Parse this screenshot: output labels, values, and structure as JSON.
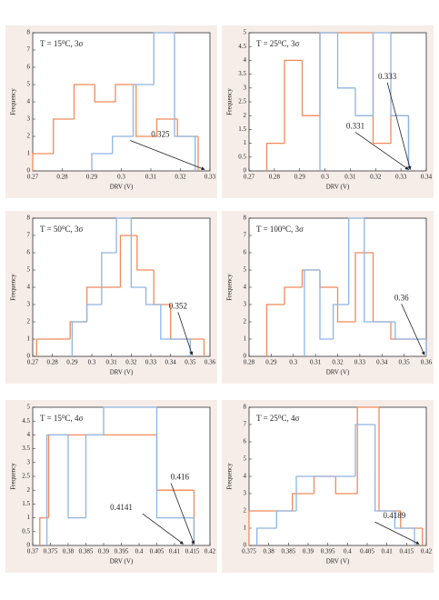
{
  "chart_data": [
    {
      "type": "histogram",
      "title": "T = 15⁰C, 3σ",
      "xlabel": "DRV (V)",
      "ylabel": "Frequency",
      "xlim": [
        0.27,
        0.33
      ],
      "xticks": [
        0.27,
        0.28,
        0.29,
        0.3,
        0.31,
        0.32,
        0.33
      ],
      "ylim": [
        0,
        8
      ],
      "yticks": [
        0,
        1,
        2,
        3,
        4,
        5,
        6,
        7,
        8
      ],
      "annotations": [
        "0.325"
      ],
      "series": [
        {
          "color": "#f08a5a",
          "bins": [
            0.27,
            0.277,
            0.284,
            0.291,
            0.298,
            0.305,
            0.312,
            0.319,
            0.326
          ],
          "values": [
            1,
            3,
            5,
            4,
            5,
            2,
            3,
            2
          ]
        },
        {
          "color": "#8fb4e3",
          "bins": [
            0.29,
            0.297,
            0.304,
            0.311,
            0.318,
            0.325
          ],
          "values": [
            1,
            2,
            5,
            8,
            2
          ]
        }
      ]
    },
    {
      "type": "histogram",
      "title": "T = 25⁰C, 3σ",
      "xlabel": "DRV (V)",
      "ylabel": "Frequency",
      "xlim": [
        0.27,
        0.34
      ],
      "xticks": [
        0.27,
        0.28,
        0.29,
        0.3,
        0.31,
        0.32,
        0.33,
        0.34
      ],
      "ylim": [
        0,
        5
      ],
      "yticks": [
        0,
        0.5,
        1,
        1.5,
        2,
        2.5,
        3,
        3.5,
        4,
        4.5,
        5
      ],
      "annotations": [
        "0.333",
        "0.331"
      ],
      "series": [
        {
          "color": "#f08a5a",
          "bins": [
            0.277,
            0.284,
            0.291,
            0.298,
            0.305,
            0.312,
            0.319,
            0.326,
            0.333
          ],
          "values": [
            1,
            4,
            2,
            5,
            5,
            5,
            1,
            2
          ]
        },
        {
          "color": "#8fb4e3",
          "bins": [
            0.298,
            0.305,
            0.312,
            0.319,
            0.326,
            0.333
          ],
          "values": [
            5,
            3,
            2,
            5,
            2
          ]
        }
      ]
    },
    {
      "type": "histogram",
      "title": "T = 50⁰C, 3σ",
      "xlabel": "DRV (V)",
      "ylabel": "Frequency",
      "xlim": [
        0.27,
        0.36
      ],
      "xticks": [
        0.27,
        0.28,
        0.29,
        0.3,
        0.31,
        0.32,
        0.33,
        0.34,
        0.35,
        0.36
      ],
      "ylim": [
        0,
        8
      ],
      "yticks": [
        0,
        1,
        2,
        3,
        4,
        5,
        6,
        7,
        8
      ],
      "annotations": [
        "0.352"
      ],
      "series": [
        {
          "color": "#f08a5a",
          "bins": [
            0.272,
            0.2805,
            0.289,
            0.2975,
            0.306,
            0.3145,
            0.323,
            0.3315,
            0.34,
            0.3485,
            0.357
          ],
          "values": [
            1,
            1,
            2,
            4,
            4,
            7,
            5,
            3,
            1,
            1
          ]
        },
        {
          "color": "#8fb4e3",
          "bins": [
            0.29,
            0.2975,
            0.305,
            0.3125,
            0.32,
            0.3275,
            0.335,
            0.3425,
            0.35
          ],
          "values": [
            2,
            3,
            6,
            8,
            4,
            3,
            1,
            1
          ]
        }
      ]
    },
    {
      "type": "histogram",
      "title": "T = 100⁰C, 3σ",
      "xlabel": "DRV (V)",
      "ylabel": "Frequency",
      "xlim": [
        0.28,
        0.36
      ],
      "xticks": [
        0.28,
        0.29,
        0.3,
        0.31,
        0.32,
        0.33,
        0.34,
        0.35,
        0.36
      ],
      "ylim": [
        0,
        8
      ],
      "yticks": [
        0,
        1,
        2,
        3,
        4,
        5,
        6,
        7,
        8
      ],
      "annotations": [
        "0.36"
      ],
      "series": [
        {
          "color": "#f08a5a",
          "bins": [
            0.288,
            0.296,
            0.304,
            0.312,
            0.32,
            0.328,
            0.336,
            0.344,
            0.352,
            0.36
          ],
          "values": [
            3,
            4,
            5,
            4,
            2,
            6,
            2,
            1,
            1
          ]
        },
        {
          "color": "#8fb4e3",
          "bins": [
            0.305,
            0.312,
            0.318,
            0.325,
            0.332,
            0.339,
            0.346,
            0.353,
            0.36
          ],
          "values": [
            5,
            1,
            3,
            8,
            2,
            2,
            1,
            1
          ]
        }
      ]
    },
    {
      "type": "histogram",
      "title": "T = 15⁰C, 4σ",
      "xlabel": "DRV (V)",
      "ylabel": "Frequency",
      "xlim": [
        0.37,
        0.42
      ],
      "xticks": [
        0.37,
        0.375,
        0.38,
        0.385,
        0.39,
        0.395,
        0.4,
        0.405,
        0.41,
        0.415,
        0.42
      ],
      "ylim": [
        0,
        5
      ],
      "yticks": [
        0,
        0.5,
        1,
        1.5,
        2,
        2.5,
        3,
        3.5,
        4,
        4.5,
        5
      ],
      "annotations": [
        "0.416",
        "0.4141"
      ],
      "series": [
        {
          "color": "#f08a5a",
          "bins": [
            0.372,
            0.3745,
            0.405,
            0.4155
          ],
          "values": [
            1,
            4,
            2
          ]
        },
        {
          "color": "#8fb4e3",
          "bins": [
            0.374,
            0.38,
            0.385,
            0.39,
            0.405,
            0.4155
          ],
          "values": [
            4,
            1,
            4,
            5,
            1
          ]
        }
      ]
    },
    {
      "type": "histogram",
      "title": "T = 25⁰C, 4σ",
      "xlabel": "DRV (V)",
      "ylabel": "Frequency",
      "xlim": [
        0.375,
        0.42
      ],
      "xticks": [
        0.375,
        0.38,
        0.385,
        0.39,
        0.395,
        0.4,
        0.405,
        0.41,
        0.415,
        0.42
      ],
      "ylim": [
        0,
        8
      ],
      "yticks": [
        0,
        1,
        2,
        3,
        4,
        5,
        6,
        7,
        8
      ],
      "annotations": [
        "0.4189"
      ],
      "series": [
        {
          "color": "#f08a5a",
          "bins": [
            0.375,
            0.3805,
            0.386,
            0.3915,
            0.397,
            0.4025,
            0.408,
            0.4135,
            0.419
          ],
          "values": [
            2,
            2,
            3,
            4,
            3,
            8,
            2,
            1
          ]
        },
        {
          "color": "#8fb4e3",
          "bins": [
            0.377,
            0.382,
            0.387,
            0.392,
            0.397,
            0.402,
            0.407,
            0.412,
            0.417
          ],
          "values": [
            1,
            2,
            4,
            4,
            4,
            7,
            2,
            1
          ]
        }
      ]
    }
  ]
}
